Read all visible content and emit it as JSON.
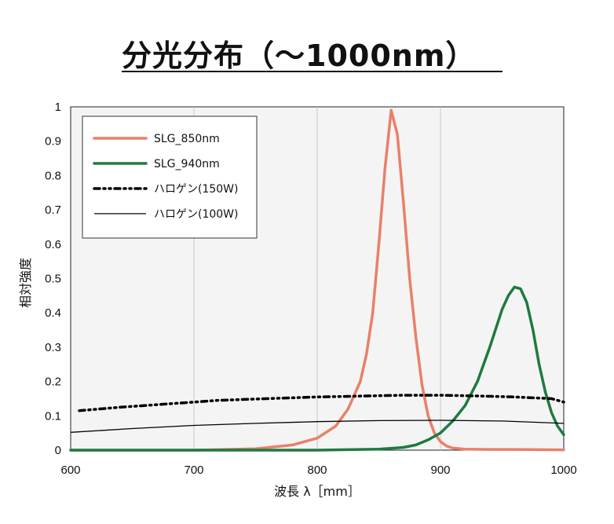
{
  "title": "分光分布（～1000nm）",
  "chart_data": {
    "type": "line",
    "xlabel": "波長 λ［mm］",
    "ylabel": "相対強度",
    "xlim": [
      600,
      1000
    ],
    "ylim": [
      0,
      1
    ],
    "x_ticks": [
      "600",
      "700",
      "800",
      "900",
      "1000"
    ],
    "y_ticks": [
      "0",
      "0.1",
      "0.2",
      "0.3",
      "0.4",
      "0.5",
      "0.6",
      "0.7",
      "0.8",
      "0.9",
      "1"
    ],
    "grid": true,
    "legend_position": "top-left",
    "series": [
      {
        "name": "SLG_850nm",
        "color": "#E8806A",
        "style": "solid",
        "x": [
          600,
          700,
          750,
          780,
          800,
          815,
          825,
          835,
          840,
          845,
          850,
          855,
          860,
          865,
          870,
          875,
          880,
          885,
          890,
          895,
          900,
          905,
          910,
          920,
          940,
          960,
          1000
        ],
        "y": [
          0,
          0,
          0.004,
          0.015,
          0.035,
          0.07,
          0.12,
          0.2,
          0.28,
          0.4,
          0.6,
          0.82,
          0.99,
          0.92,
          0.72,
          0.5,
          0.33,
          0.19,
          0.1,
          0.05,
          0.025,
          0.012,
          0.006,
          0.003,
          0.002,
          0.002,
          0.001
        ]
      },
      {
        "name": "SLG_940nm",
        "color": "#1E7A40",
        "style": "solid",
        "x": [
          600,
          800,
          850,
          870,
          880,
          890,
          900,
          910,
          920,
          930,
          940,
          950,
          955,
          960,
          965,
          970,
          975,
          980,
          985,
          990,
          995,
          1000
        ],
        "y": [
          0,
          0,
          0.003,
          0.008,
          0.015,
          0.03,
          0.05,
          0.085,
          0.13,
          0.2,
          0.3,
          0.41,
          0.45,
          0.475,
          0.47,
          0.43,
          0.35,
          0.25,
          0.17,
          0.11,
          0.07,
          0.045
        ]
      },
      {
        "name": "ハロゲン(150W)",
        "color": "#000000",
        "style": "dash-dot",
        "x": [
          607,
          640,
          680,
          720,
          760,
          800,
          840,
          870,
          900,
          930,
          960,
          990,
          1000
        ],
        "y": [
          0.115,
          0.125,
          0.135,
          0.145,
          0.15,
          0.155,
          0.158,
          0.16,
          0.16,
          0.158,
          0.155,
          0.15,
          0.14
        ]
      },
      {
        "name": "ハロゲン(100W)",
        "color": "#000000",
        "style": "thin",
        "x": [
          600,
          650,
          700,
          750,
          800,
          850,
          900,
          950,
          1000
        ],
        "y": [
          0.052,
          0.063,
          0.072,
          0.078,
          0.083,
          0.086,
          0.087,
          0.085,
          0.078
        ]
      }
    ]
  }
}
